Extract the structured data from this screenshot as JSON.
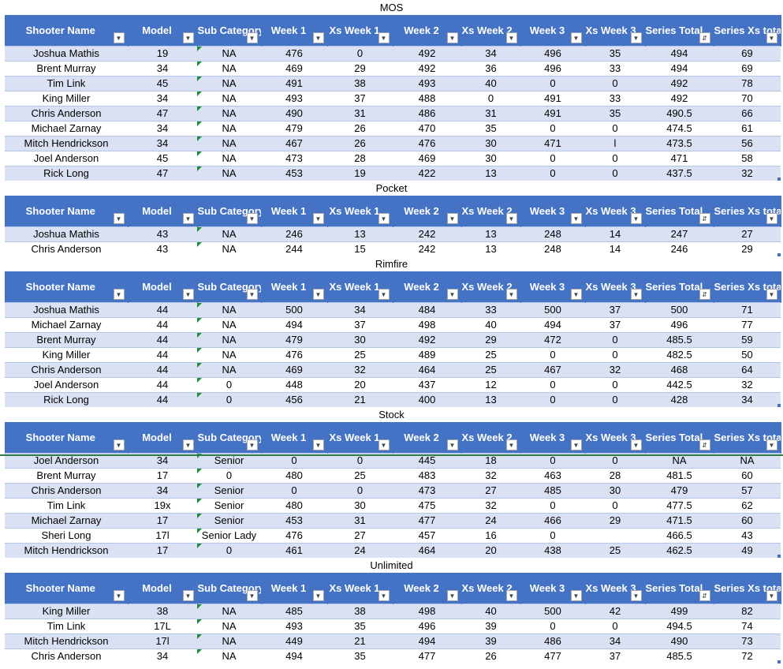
{
  "columns": [
    "Shooter Name",
    "Model",
    "Sub Category",
    "Week 1",
    "Xs Week 1",
    "Week 2",
    "Xs Week 2",
    "Week 3",
    "Xs Week 3",
    "Series Total",
    "Series Xs total"
  ],
  "filter_icons": [
    "dropdown-icon",
    "dropdown-icon",
    "dropdown-icon",
    "dropdown-icon",
    "dropdown-icon",
    "dropdown-icon",
    "dropdown-icon",
    "dropdown-icon",
    "dropdown-icon",
    "sort-filter-icon",
    "dropdown-icon"
  ],
  "sections": [
    {
      "title": "MOS",
      "rows": [
        [
          "Joshua Mathis",
          "19",
          "NA",
          "476",
          "0",
          "492",
          "34",
          "496",
          "35",
          "494",
          "69"
        ],
        [
          "Brent Murray",
          "34",
          "NA",
          "469",
          "29",
          "492",
          "36",
          "496",
          "33",
          "494",
          "69"
        ],
        [
          "Tim Link",
          "45",
          "NA",
          "491",
          "38",
          "493",
          "40",
          "0",
          "0",
          "492",
          "78"
        ],
        [
          "King Miller",
          "34",
          "NA",
          "493",
          "37",
          "488",
          "0",
          "491",
          "33",
          "492",
          "70"
        ],
        [
          "Chris Anderson",
          "47",
          "NA",
          "490",
          "31",
          "486",
          "31",
          "491",
          "35",
          "490.5",
          "66"
        ],
        [
          "Michael Zarnay",
          "34",
          "NA",
          "479",
          "26",
          "470",
          "35",
          "0",
          "0",
          "474.5",
          "61"
        ],
        [
          "Mitch Hendrickson",
          "34",
          "NA",
          "467",
          "26",
          "476",
          "30",
          "471",
          "l",
          "473.5",
          "56"
        ],
        [
          "Joel Anderson",
          "45",
          "NA",
          "473",
          "28",
          "469",
          "30",
          "0",
          "0",
          "471",
          "58"
        ],
        [
          "Rick Long",
          "47",
          "NA",
          "453",
          "19",
          "422",
          "13",
          "0",
          "0",
          "437.5",
          "32"
        ]
      ]
    },
    {
      "title": "Pocket",
      "rows": [
        [
          "Joshua Mathis",
          "43",
          "NA",
          "246",
          "13",
          "242",
          "13",
          "248",
          "14",
          "247",
          "27"
        ],
        [
          "Chris Anderson",
          "43",
          "NA",
          "244",
          "15",
          "242",
          "13",
          "248",
          "14",
          "246",
          "29"
        ]
      ]
    },
    {
      "title": "Rimfire",
      "rows": [
        [
          "Joshua Mathis",
          "44",
          "NA",
          "500",
          "34",
          "484",
          "33",
          "500",
          "37",
          "500",
          "71"
        ],
        [
          "Michael Zarnay",
          "44",
          "NA",
          "494",
          "37",
          "498",
          "40",
          "494",
          "37",
          "496",
          "77"
        ],
        [
          "Brent Murray",
          "44",
          "NA",
          "479",
          "30",
          "492",
          "29",
          "472",
          "0",
          "485.5",
          "59"
        ],
        [
          "King Miller",
          "44",
          "NA",
          "476",
          "25",
          "489",
          "25",
          "0",
          "0",
          "482.5",
          "50"
        ],
        [
          "Chris Anderson",
          "44",
          "NA",
          "469",
          "32",
          "464",
          "25",
          "467",
          "32",
          "468",
          "64"
        ],
        [
          "Joel Anderson",
          "44",
          "0",
          "448",
          "20",
          "437",
          "12",
          "0",
          "0",
          "442.5",
          "32"
        ],
        [
          "Rick Long",
          "44",
          "0",
          "456",
          "21",
          "400",
          "13",
          "0",
          "0",
          "428",
          "34"
        ]
      ]
    },
    {
      "title": "Stock",
      "rows": [
        [
          "Joel Anderson",
          "34",
          "Senior",
          "0",
          "0",
          "445",
          "18",
          "0",
          "0",
          "NA",
          "NA"
        ],
        [
          "Brent Murray",
          "17",
          "0",
          "480",
          "25",
          "483",
          "32",
          "463",
          "28",
          "481.5",
          "60"
        ],
        [
          "Chris Anderson",
          "34",
          "Senior",
          "0",
          "0",
          "473",
          "27",
          "485",
          "30",
          "479",
          "57"
        ],
        [
          "Tim Link",
          "19x",
          "Senior",
          "480",
          "30",
          "475",
          "32",
          "0",
          "0",
          "477.5",
          "62"
        ],
        [
          "Michael Zarnay",
          "17",
          "Senior",
          "453",
          "31",
          "477",
          "24",
          "466",
          "29",
          "471.5",
          "60"
        ],
        [
          "Sheri Long",
          "17l",
          "Senior Lady",
          "476",
          "27",
          "457",
          "16",
          "0",
          "",
          "466.5",
          "43"
        ],
        [
          "Mitch Hendrickson",
          "17",
          "0",
          "461",
          "24",
          "464",
          "20",
          "438",
          "25",
          "462.5",
          "49"
        ]
      ]
    },
    {
      "title": "Unlimited",
      "rows": [
        [
          "King Miller",
          "38",
          "NA",
          "485",
          "38",
          "498",
          "40",
          "500",
          "42",
          "499",
          "82"
        ],
        [
          "Tim Link",
          "17L",
          "NA",
          "493",
          "35",
          "496",
          "39",
          "0",
          "0",
          "494.5",
          "74"
        ],
        [
          "Mitch Hendrickson",
          "17l",
          "NA",
          "449",
          "21",
          "494",
          "39",
          "486",
          "34",
          "490",
          "73"
        ],
        [
          "Chris Anderson",
          "34",
          "NA",
          "494",
          "35",
          "477",
          "26",
          "477",
          "37",
          "485.5",
          "72"
        ]
      ]
    }
  ]
}
